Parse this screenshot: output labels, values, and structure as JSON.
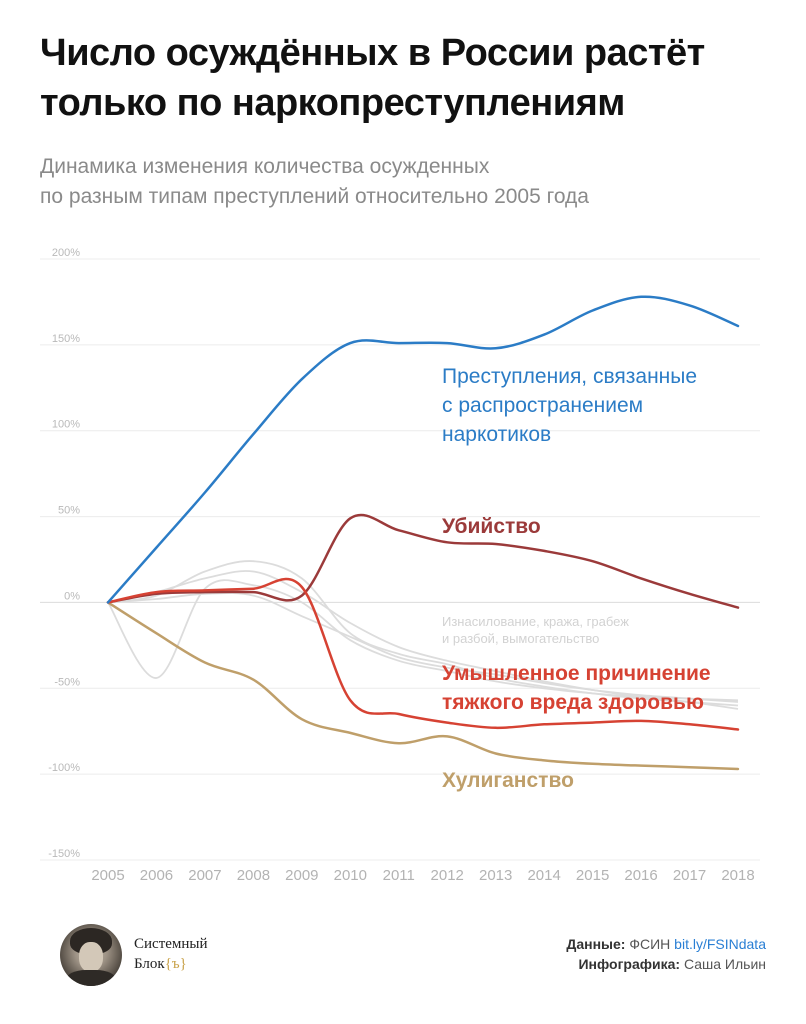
{
  "title": {
    "line1": "Число осуждённых в России растёт",
    "line2": "только по наркопреступлениям"
  },
  "subtitle": {
    "line1": "Динамика изменения количества осужденных",
    "line2": "по разным типам преступлений относительно 2005 года"
  },
  "chart_data": {
    "type": "line",
    "x": [
      2005,
      2006,
      2007,
      2008,
      2009,
      2010,
      2011,
      2012,
      2013,
      2014,
      2015,
      2016,
      2017,
      2018
    ],
    "ylim": [
      -150,
      200
    ],
    "yticks": [
      200,
      150,
      100,
      50,
      0,
      -50,
      -100,
      -150
    ],
    "ytick_labels": [
      "200%",
      "150%",
      "100%",
      "50%",
      "0%",
      "-50%",
      "-100%",
      "-150%"
    ],
    "xtick_labels": [
      "2005",
      "2006",
      "2007",
      "2008",
      "2009",
      "2010",
      "2011",
      "2012",
      "2013",
      "2014",
      "2015",
      "2016",
      "2017",
      "2018"
    ],
    "grid": true,
    "series": [
      {
        "name": "Преступления, связанные с распространением наркотиков",
        "label_lines": [
          "Преступления, связанные",
          "с распространением",
          "наркотиков"
        ],
        "color": "#2b7cc6",
        "emphasis": "normal",
        "values": [
          0,
          32,
          64,
          98,
          130,
          151,
          151,
          151,
          148,
          156,
          170,
          178,
          173,
          161
        ]
      },
      {
        "name": "Убийство",
        "label_lines": [
          "Убийство"
        ],
        "color": "#9b3a3a",
        "emphasis": "bold",
        "values": [
          0,
          5,
          6,
          6,
          4,
          49,
          42,
          35,
          34,
          30,
          24,
          14,
          5,
          -3
        ]
      },
      {
        "name": "Умышленное причинение тяжкого вреда здоровью",
        "label_lines": [
          "Умышленное причинение",
          "тяжкого вреда здоровью"
        ],
        "color": "#d64233",
        "emphasis": "bold",
        "values": [
          0,
          6,
          7,
          8,
          9,
          -57,
          -65,
          -70,
          -73,
          -71,
          -70,
          -69,
          -71,
          -74
        ]
      },
      {
        "name": "Хулиганство",
        "label_lines": [
          "Хулиганство"
        ],
        "color": "#bf9f6a",
        "emphasis": "bold",
        "values": [
          0,
          -18,
          -35,
          -45,
          -68,
          -76,
          -82,
          -78,
          -88,
          -92,
          -94,
          -95,
          -96,
          -97
        ]
      },
      {
        "name": "Изнасилование, кража, грабеж и разбой, вымогательство",
        "label_lines": [
          "Изнасилование, кража, грабеж",
          "и разбой, вымогательство"
        ],
        "color": "#dcdcdc",
        "emphasis": "muted",
        "members": [
          {
            "values": [
              0,
              2,
              5,
              4,
              -8,
              -20,
              -32,
              -38,
              -42,
              -47,
              -51,
              -54,
              -56,
              -58
            ]
          },
          {
            "values": [
              0,
              4,
              18,
              24,
              14,
              -18,
              -30,
              -36,
              -44,
              -49,
              -53,
              -56,
              -58,
              -60
            ]
          },
          {
            "values": [
              0,
              6,
              14,
              18,
              6,
              -12,
              -26,
              -34,
              -40,
              -46,
              -51,
              -55,
              -58,
              -62
            ]
          },
          {
            "values": [
              0,
              -44,
              8,
              10,
              0,
              -22,
              -34,
              -40,
              -46,
              -50,
              -53,
              -55,
              -56,
              -57
            ]
          }
        ]
      }
    ]
  },
  "footer": {
    "brand_line1": "Системный",
    "brand_line2": "Блок",
    "brand_mark": "{ъ}",
    "data_label": "Данные:",
    "data_source": "ФСИН",
    "data_link": "bit.ly/FSINdata",
    "infographic_label": "Инфографика:",
    "author": "Саша Ильин"
  }
}
